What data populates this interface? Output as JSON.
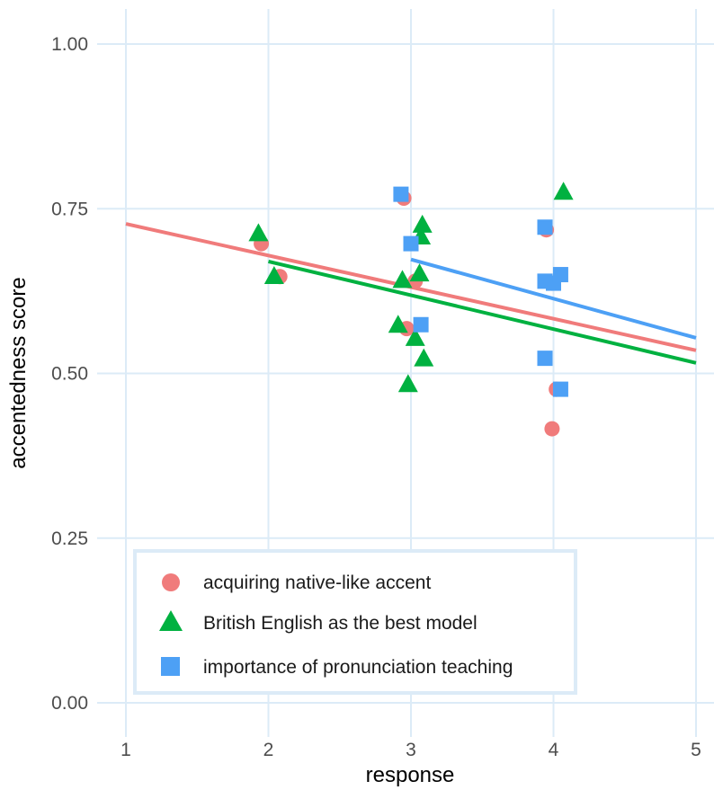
{
  "chart_data": {
    "type": "scatter",
    "xlabel": "response",
    "ylabel": "accentedness score",
    "xlim": [
      1,
      5
    ],
    "ylim": [
      0,
      1
    ],
    "x_ticks": [
      "1",
      "2",
      "3",
      "4",
      "5"
    ],
    "y_ticks": [
      "0.00",
      "0.25",
      "0.50",
      "0.75",
      "1.00"
    ],
    "grid": true,
    "legend_position": "bottom-left inside",
    "series": [
      {
        "name": "acquiring native-like accent",
        "color": "#f07b7b",
        "marker": "circle",
        "points": [
          {
            "x": 1.95,
            "y": 0.697
          },
          {
            "x": 2.08,
            "y": 0.647
          },
          {
            "x": 2.95,
            "y": 0.766
          },
          {
            "x": 2.97,
            "y": 0.568
          },
          {
            "x": 3.03,
            "y": 0.64
          },
          {
            "x": 3.95,
            "y": 0.718
          },
          {
            "x": 3.99,
            "y": 0.637
          },
          {
            "x": 4.02,
            "y": 0.476
          },
          {
            "x": 3.99,
            "y": 0.416
          }
        ],
        "fit": {
          "x": [
            1,
            5
          ],
          "y": [
            0.727,
            0.535
          ]
        }
      },
      {
        "name": "British English as the best model",
        "color": "#00b140",
        "marker": "triangle",
        "points": [
          {
            "x": 1.93,
            "y": 0.713
          },
          {
            "x": 2.04,
            "y": 0.648
          },
          {
            "x": 2.91,
            "y": 0.574
          },
          {
            "x": 2.94,
            "y": 0.642
          },
          {
            "x": 2.98,
            "y": 0.484
          },
          {
            "x": 3.03,
            "y": 0.554
          },
          {
            "x": 3.06,
            "y": 0.652
          },
          {
            "x": 3.07,
            "y": 0.708
          },
          {
            "x": 3.08,
            "y": 0.726
          },
          {
            "x": 3.09,
            "y": 0.523
          },
          {
            "x": 4.07,
            "y": 0.776
          }
        ],
        "fit": {
          "x": [
            2,
            5
          ],
          "y": [
            0.67,
            0.516
          ]
        }
      },
      {
        "name": "importance of pronunciation teaching",
        "color": "#4da0f5",
        "marker": "square",
        "points": [
          {
            "x": 2.93,
            "y": 0.772
          },
          {
            "x": 3.0,
            "y": 0.697
          },
          {
            "x": 3.07,
            "y": 0.574
          },
          {
            "x": 3.94,
            "y": 0.722
          },
          {
            "x": 3.94,
            "y": 0.64
          },
          {
            "x": 4.0,
            "y": 0.637
          },
          {
            "x": 4.05,
            "y": 0.65
          },
          {
            "x": 3.94,
            "y": 0.523
          },
          {
            "x": 4.05,
            "y": 0.476
          }
        ],
        "fit": {
          "x": [
            3,
            5
          ],
          "y": [
            0.673,
            0.554
          ]
        }
      }
    ]
  }
}
